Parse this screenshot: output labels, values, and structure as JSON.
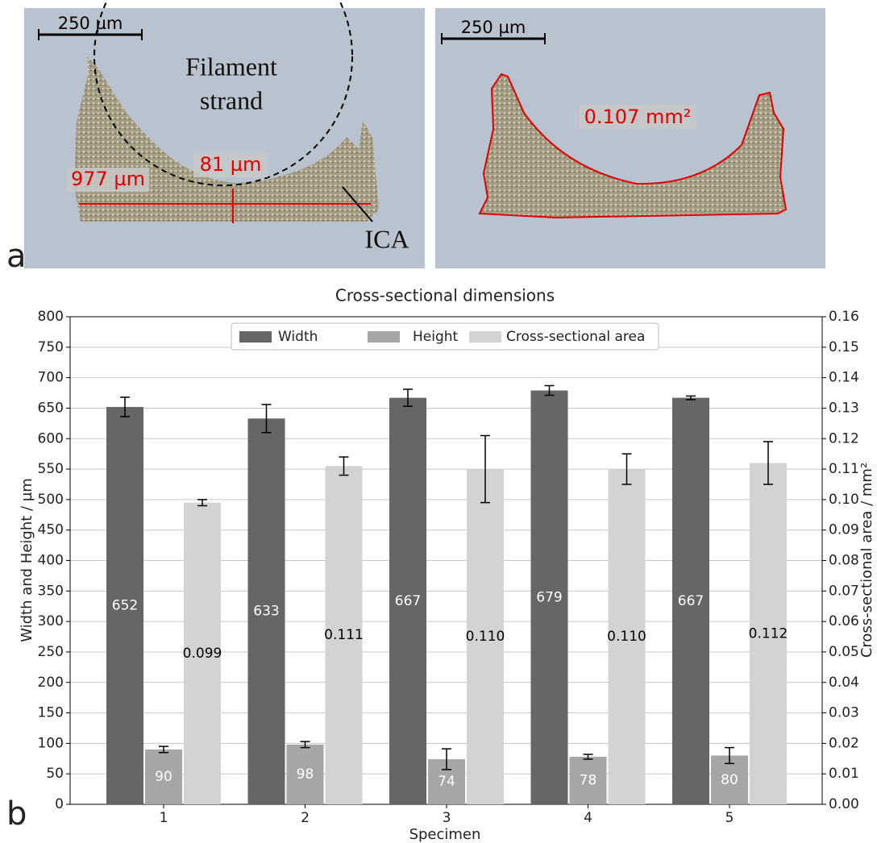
{
  "chart_data": {
    "type": "bar",
    "title": "Cross-sectional dimensions",
    "xlabel": "Specimen",
    "ylabel": "Width and Height / µm",
    "y2label": "Cross-sectional area / mm²",
    "categories": [
      "1",
      "2",
      "3",
      "4",
      "5"
    ],
    "series": [
      {
        "name": "Width",
        "color": "#666666",
        "label_color": "#ffffff",
        "values": [
          652,
          633,
          667,
          679,
          667
        ],
        "errors": [
          16,
          23,
          14,
          8,
          3
        ]
      },
      {
        "name": "Height",
        "color": "#a6a6a6",
        "label_color": "#ffffff",
        "values": [
          90,
          98,
          74,
          78,
          80
        ],
        "errors": [
          5,
          5,
          17,
          4,
          13
        ]
      },
      {
        "name": "Cross-sectional area",
        "color": "#d3d3d3",
        "label_color": "#000000",
        "axis": "y2",
        "values": [
          0.099,
          0.111,
          0.11,
          0.11,
          0.112
        ],
        "value_labels": [
          "0.099",
          "0.111",
          "0.110",
          "0.110",
          "0.112"
        ],
        "errors": [
          0.001,
          0.003,
          0.011,
          0.005,
          0.007
        ]
      }
    ],
    "ylim": [
      0,
      800
    ],
    "yticks": [
      0,
      50,
      100,
      150,
      200,
      250,
      300,
      350,
      400,
      450,
      500,
      550,
      600,
      650,
      700,
      750,
      800
    ],
    "y2lim": [
      0,
      0.16
    ],
    "y2ticks": [
      {
        "value": 0,
        "label": "0.00"
      },
      {
        "value": 0.01,
        "label": "0.01"
      },
      {
        "value": 0.02,
        "label": "0.02"
      },
      {
        "value": 0.03,
        "label": "0.03"
      },
      {
        "value": 0.04,
        "label": "0.04"
      },
      {
        "value": 0.05,
        "label": "0.05"
      },
      {
        "value": 0.06,
        "label": "0.06"
      },
      {
        "value": 0.07,
        "label": "0.07"
      },
      {
        "value": 0.08,
        "label": "0.08"
      },
      {
        "value": 0.09,
        "label": "0.09"
      },
      {
        "value": 0.1,
        "label": "0.10"
      },
      {
        "value": 0.11,
        "label": "0.11"
      },
      {
        "value": 0.12,
        "label": "0.12"
      },
      {
        "value": 0.13,
        "label": "0.13"
      },
      {
        "value": 0.14,
        "label": "0.14"
      },
      {
        "value": 0.15,
        "label": "0.15"
      },
      {
        "value": 0.16,
        "label": "0.16"
      }
    ],
    "grid": true,
    "legend": "upper center"
  },
  "panel_labels": [
    "a",
    "b"
  ],
  "panel_a": {
    "scale_bars": [
      "250 µm",
      "250 µm"
    ],
    "filament": [
      "Filament",
      "strand"
    ],
    "height_label": "81 µm",
    "width_label": "977 µm",
    "ica": "ICA",
    "area_label": "0.107 mm²"
  }
}
